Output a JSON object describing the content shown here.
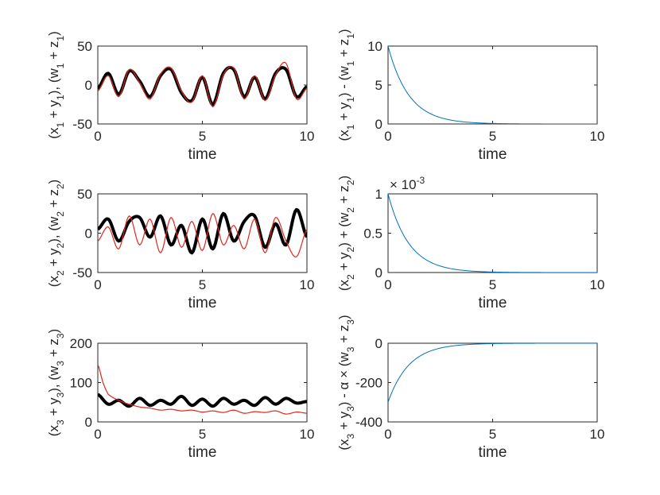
{
  "chart_data": [
    {
      "type": "line",
      "xlabel": "time",
      "ylabel": "(x_1 + y_1), (w_1 + z_1)",
      "xlim": [
        0,
        10
      ],
      "ylim": [
        -50,
        50
      ],
      "xticks": [
        "0",
        "5",
        "10"
      ],
      "yticks": [
        "-50",
        "0",
        "50"
      ],
      "series": [
        {
          "color": "#000000",
          "style": "thick",
          "x": [
            0,
            0.5,
            1,
            1.5,
            2,
            2.5,
            3,
            3.5,
            4,
            4.5,
            5,
            5.5,
            6,
            6.5,
            7,
            7.5,
            8,
            8.5,
            9,
            9.5,
            10
          ],
          "values": [
            -5,
            15,
            -12,
            18,
            5,
            -15,
            12,
            20,
            -10,
            -20,
            10,
            -25,
            15,
            20,
            -15,
            10,
            -18,
            15,
            20,
            -15,
            -2
          ]
        },
        {
          "color": "#e3241c",
          "style": "thin",
          "x": [
            0,
            0.5,
            1,
            1.5,
            2,
            2.5,
            3,
            3.5,
            4,
            4.5,
            5,
            5.5,
            6,
            6.5,
            7,
            7.5,
            8,
            8.5,
            9,
            9.5,
            10
          ],
          "values": [
            -8,
            12,
            -15,
            20,
            3,
            -18,
            14,
            22,
            -8,
            -22,
            12,
            -28,
            13,
            22,
            -18,
            12,
            -20,
            13,
            28,
            -18,
            -4
          ]
        }
      ]
    },
    {
      "type": "line",
      "xlabel": "time",
      "ylabel": "(x_1 + y_1) - (w_1 + z_1)",
      "xlim": [
        0,
        10
      ],
      "ylim": [
        0,
        10
      ],
      "xticks": [
        "0",
        "5",
        "10"
      ],
      "yticks": [
        "0",
        "5",
        "10"
      ],
      "series": [
        {
          "color": "#0072bd",
          "style": "decay",
          "start": 10,
          "rate": 1
        }
      ]
    },
    {
      "type": "line",
      "xlabel": "time",
      "ylabel": "(x_2 + y_2), (w_2 + z_2)",
      "xlim": [
        0,
        10
      ],
      "ylim": [
        -50,
        50
      ],
      "xticks": [
        "0",
        "5",
        "10"
      ],
      "yticks": [
        "-50",
        "0",
        "50"
      ],
      "series": [
        {
          "color": "#000000",
          "style": "thick",
          "x": [
            0,
            0.5,
            1,
            1.5,
            2,
            2.5,
            3,
            3.5,
            4,
            4.5,
            5,
            5.5,
            6,
            6.5,
            7,
            7.5,
            8,
            8.5,
            9,
            9.5,
            10
          ],
          "values": [
            5,
            18,
            -10,
            15,
            20,
            -5,
            22,
            -15,
            10,
            -25,
            18,
            -20,
            25,
            -10,
            15,
            22,
            -18,
            12,
            -15,
            30,
            -5
          ]
        },
        {
          "color": "#e3241c",
          "style": "thin",
          "x": [
            0,
            0.5,
            1,
            1.5,
            2,
            2.5,
            3,
            3.5,
            4,
            4.5,
            5,
            5.5,
            6,
            6.5,
            7,
            7.5,
            8,
            8.5,
            9,
            9.5,
            10
          ],
          "values": [
            -10,
            8,
            -20,
            22,
            -15,
            18,
            -25,
            20,
            -18,
            15,
            -22,
            25,
            -15,
            10,
            -20,
            18,
            -25,
            20,
            -10,
            -30,
            5
          ]
        }
      ]
    },
    {
      "type": "line",
      "xlabel": "time",
      "ylabel": "(x_2 + y_2) + (w_2 + z_2)",
      "xlim": [
        0,
        10
      ],
      "ylim": [
        0,
        0.001
      ],
      "xticks": [
        "0",
        "5",
        "10"
      ],
      "yticks": [
        "0",
        "0.5",
        "1"
      ],
      "exponent_label": "× 10^-3",
      "series": [
        {
          "color": "#0072bd",
          "style": "decay",
          "start": 0.001,
          "rate": 1
        }
      ]
    },
    {
      "type": "line",
      "xlabel": "time",
      "ylabel": "(x_3 + y_3), (w_3 + z_3)",
      "xlim": [
        0,
        10
      ],
      "ylim": [
        0,
        200
      ],
      "xticks": [
        "0",
        "5",
        "10"
      ],
      "yticks": [
        "0",
        "100",
        "200"
      ],
      "series": [
        {
          "color": "#000000",
          "style": "thick",
          "x": [
            0,
            0.5,
            1,
            1.5,
            2,
            2.5,
            3,
            3.5,
            4,
            4.5,
            5,
            5.5,
            6,
            6.5,
            7,
            7.5,
            8,
            8.5,
            9,
            9.5,
            10
          ],
          "values": [
            70,
            45,
            55,
            40,
            60,
            42,
            55,
            45,
            65,
            42,
            58,
            40,
            60,
            45,
            55,
            42,
            62,
            45,
            60,
            48,
            52
          ]
        },
        {
          "color": "#e3241c",
          "style": "thin",
          "x": [
            0,
            0.25,
            0.5,
            1,
            1.5,
            2,
            2.5,
            3,
            3.5,
            4,
            4.5,
            5,
            5.5,
            6,
            6.5,
            7,
            7.5,
            8,
            8.5,
            9,
            9.5,
            10
          ],
          "values": [
            145,
            100,
            70,
            55,
            45,
            38,
            35,
            30,
            32,
            28,
            30,
            25,
            28,
            24,
            30,
            22,
            26,
            24,
            28,
            20,
            25,
            22
          ]
        }
      ]
    },
    {
      "type": "line",
      "xlabel": "time",
      "ylabel": "(x_3 + y_3) - α × (w_3 + z_3)",
      "xlim": [
        0,
        10
      ],
      "ylim": [
        -400,
        0
      ],
      "xticks": [
        "0",
        "5",
        "10"
      ],
      "yticks": [
        "-400",
        "-200",
        "0"
      ],
      "series": [
        {
          "color": "#0072bd",
          "style": "decay",
          "start": -300,
          "rate": 1
        }
      ]
    }
  ]
}
